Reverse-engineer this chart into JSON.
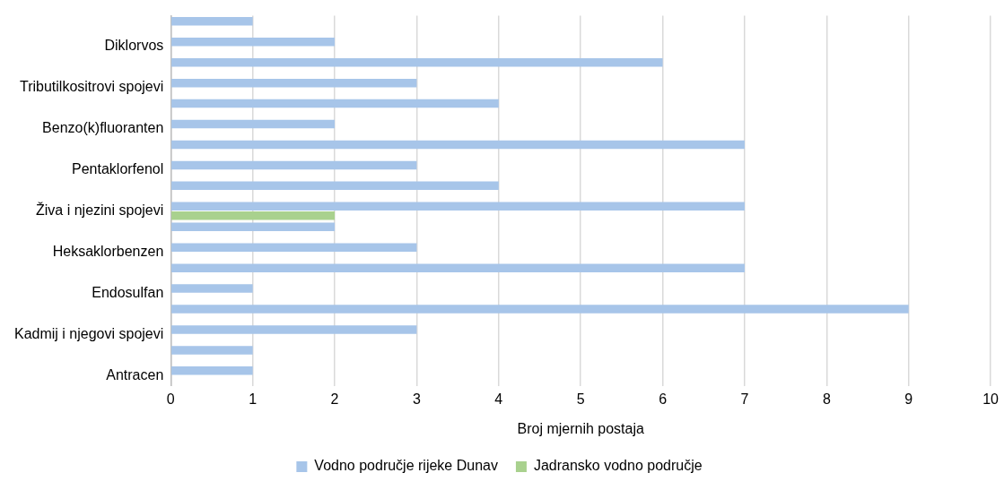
{
  "chart_data": {
    "type": "bar",
    "orientation": "horizontal",
    "xlabel": "Broj mjernih postaja",
    "categories": [
      null,
      "Diklorvos",
      null,
      "Tributilkositrovi spojevi",
      null,
      "Benzo(k)fluoranten",
      null,
      "Pentaklorfenol",
      null,
      "Živa i njezini spojevi",
      null,
      "Heksaklorbenzen",
      null,
      "Endosulfan",
      null,
      "Kadmij i njegovi spojevi",
      null,
      "Antracen"
    ],
    "series": [
      {
        "name": "Vodno područje rijeke Dunav",
        "color": "#a7c5e9",
        "values": [
          1,
          2,
          6,
          3,
          4,
          2,
          7,
          3,
          4,
          7,
          2,
          3,
          7,
          1,
          9,
          3,
          1,
          1
        ]
      },
      {
        "name": "Jadransko vodno područje",
        "color": "#a9d18e",
        "values": [
          null,
          null,
          null,
          null,
          null,
          null,
          null,
          null,
          null,
          2,
          null,
          null,
          null,
          null,
          null,
          null,
          null,
          null
        ]
      }
    ],
    "xlim": [
      0,
      10
    ],
    "xticks": [
      0,
      1,
      2,
      3,
      4,
      5,
      6,
      7,
      8,
      9,
      10
    ],
    "grid": "x",
    "legend": "bottom"
  }
}
